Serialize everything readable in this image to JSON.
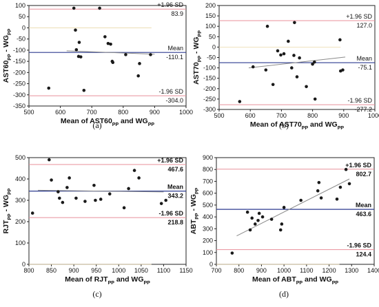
{
  "chart_data": [
    {
      "type": "scatter",
      "panel": "(a)",
      "xlabel": {
        "main": "Mean of AST60",
        "sub": "PP",
        "tail": " and WG",
        "sub2": "PP"
      },
      "ylabel": {
        "main": "AST60",
        "sub": "PP",
        "tail": " - WG",
        "sub2": "PP"
      },
      "xlim": [
        500,
        1000
      ],
      "ylim": [
        -350,
        100
      ],
      "xticks": [
        500,
        600,
        700,
        800,
        900,
        1000
      ],
      "yticks": [
        100,
        50,
        0,
        -50,
        -100,
        -150,
        -200,
        -250,
        -300,
        -350
      ],
      "upper": {
        "label": "+1.96 SD",
        "value": 83.9,
        "value_text": "83.9"
      },
      "mean": {
        "label": "Mean",
        "value": -110.1,
        "value_text": "-110.1"
      },
      "lower": {
        "label": "-1.96 SD",
        "value": -304.0,
        "value_text": "-304.0"
      },
      "zero_line": 0,
      "trend": {
        "x": [
          620,
          900
        ],
        "y": [
          -103,
          -118
        ]
      },
      "points": {
        "x": [
          563,
          643,
          648,
          651,
          658,
          665,
          660,
          675,
          725,
          742,
          752,
          760,
          765,
          767,
          808,
          848,
          852,
          887
        ],
        "y": [
          -270,
          88,
          -10,
          -98,
          -128,
          -130,
          -65,
          -280,
          88,
          -40,
          -70,
          -73,
          -150,
          -155,
          -120,
          -215,
          -160,
          -120
        ]
      }
    },
    {
      "type": "scatter",
      "panel": "(b)",
      "xlabel": {
        "main": "Mean of AST70",
        "sub": "PP",
        "tail": " and WG",
        "sub2": "PP"
      },
      "ylabel": {
        "main": "AST70",
        "sub": "PP",
        "tail": " - WG",
        "sub2": "PP"
      },
      "xlim": [
        500,
        1000
      ],
      "ylim": [
        -300,
        200
      ],
      "xticks": [
        500,
        600,
        700,
        800,
        900,
        1000
      ],
      "yticks": [
        200,
        150,
        100,
        50,
        0,
        -50,
        -100,
        -150,
        -200,
        -250,
        -300
      ],
      "upper": {
        "label": "+1.96 SD",
        "value": 127.0,
        "value_text": "127.0"
      },
      "mean": {
        "label": "Mean",
        "value": -75.1,
        "value_text": "-75.1"
      },
      "lower": {
        "label": "-1.96 SD",
        "value": -277.2,
        "value_text": "-277.2"
      },
      "zero_line": 0,
      "trend": {
        "x": [
          595,
          905
        ],
        "y": [
          -100,
          -48
        ]
      },
      "points": {
        "x": [
          566,
          609,
          650,
          655,
          673,
          688,
          698,
          708,
          722,
          733,
          740,
          742,
          750,
          758,
          780,
          800,
          806,
          808,
          888,
          890,
          897
        ],
        "y": [
          -262,
          -95,
          -110,
          100,
          -180,
          -18,
          -38,
          -32,
          28,
          -100,
          -40,
          118,
          -143,
          -52,
          -190,
          -82,
          -72,
          -250,
          35,
          -115,
          -110
        ]
      }
    },
    {
      "type": "scatter",
      "panel": "(c)",
      "xlabel": {
        "main": "Mean of RJT",
        "sub": "PP",
        "tail": " and WG",
        "sub2": "PP"
      },
      "ylabel": {
        "main": "RJT",
        "sub": "PP",
        "tail": " - WG",
        "sub2": "PP"
      },
      "xlim": [
        800,
        1150
      ],
      "ylim": [
        0,
        500
      ],
      "xticks": [
        800,
        850,
        900,
        950,
        1000,
        1050,
        1100,
        1150
      ],
      "yticks": [
        500,
        400,
        300,
        200,
        100,
        0
      ],
      "upper": {
        "label": "+1.96 SD",
        "value": 467.6,
        "value_text": "467.6"
      },
      "mean": {
        "label": "Mean",
        "value": 343.2,
        "value_text": "343.2"
      },
      "lower": {
        "label": "-1.96 SD",
        "value": 218.8,
        "value_text": "218.8"
      },
      "zero_line": 0,
      "trend": {
        "x": [
          820,
          1100
        ],
        "y": [
          347,
          339
        ]
      },
      "points": {
        "x": [
          808,
          845,
          850,
          865,
          868,
          875,
          885,
          890,
          905,
          925,
          945,
          948,
          960,
          980,
          1012,
          1022,
          1035,
          1045,
          1095,
          1105
        ],
        "y": [
          240,
          490,
          395,
          340,
          310,
          290,
          360,
          405,
          310,
          295,
          370,
          300,
          305,
          330,
          265,
          355,
          440,
          405,
          285,
          300
        ]
      }
    },
    {
      "type": "scatter",
      "panel": "(d)",
      "xlabel": {
        "main": "Mean of ABT",
        "sub": "PP",
        "tail": " and WG",
        "sub2": "PP"
      },
      "ylabel": {
        "main": "ABT",
        "sub": "PP",
        "tail": " - WG",
        "sub2": "PP"
      },
      "xlim": [
        700,
        1400
      ],
      "ylim": [
        0,
        900
      ],
      "xticks": [
        700,
        800,
        900,
        1000,
        1100,
        1200,
        1300,
        1400
      ],
      "yticks": [
        900,
        800,
        700,
        600,
        500,
        400,
        300,
        200,
        100,
        0
      ],
      "upper": {
        "label": "+1.96 SD",
        "value": 802.7,
        "value_text": "802.7"
      },
      "mean": {
        "label": "Mean",
        "value": 463.6,
        "value_text": "463.6"
      },
      "lower": {
        "label": "-1.96 SD",
        "value": 124.4,
        "value_text": "124.4"
      },
      "zero_line": 0,
      "trend": {
        "x": [
          790,
          1290
        ],
        "y": [
          240,
          720
        ]
      },
      "points": {
        "x": [
          770,
          838,
          850,
          858,
          872,
          885,
          890,
          905,
          945,
          985,
          990,
          1000,
          1075,
          1150,
          1155,
          1165,
          1235,
          1250,
          1275,
          1290
        ],
        "y": [
          95,
          440,
          290,
          390,
          340,
          370,
          430,
          400,
          380,
          290,
          340,
          480,
          540,
          620,
          690,
          560,
          550,
          650,
          800,
          680
        ]
      }
    }
  ]
}
